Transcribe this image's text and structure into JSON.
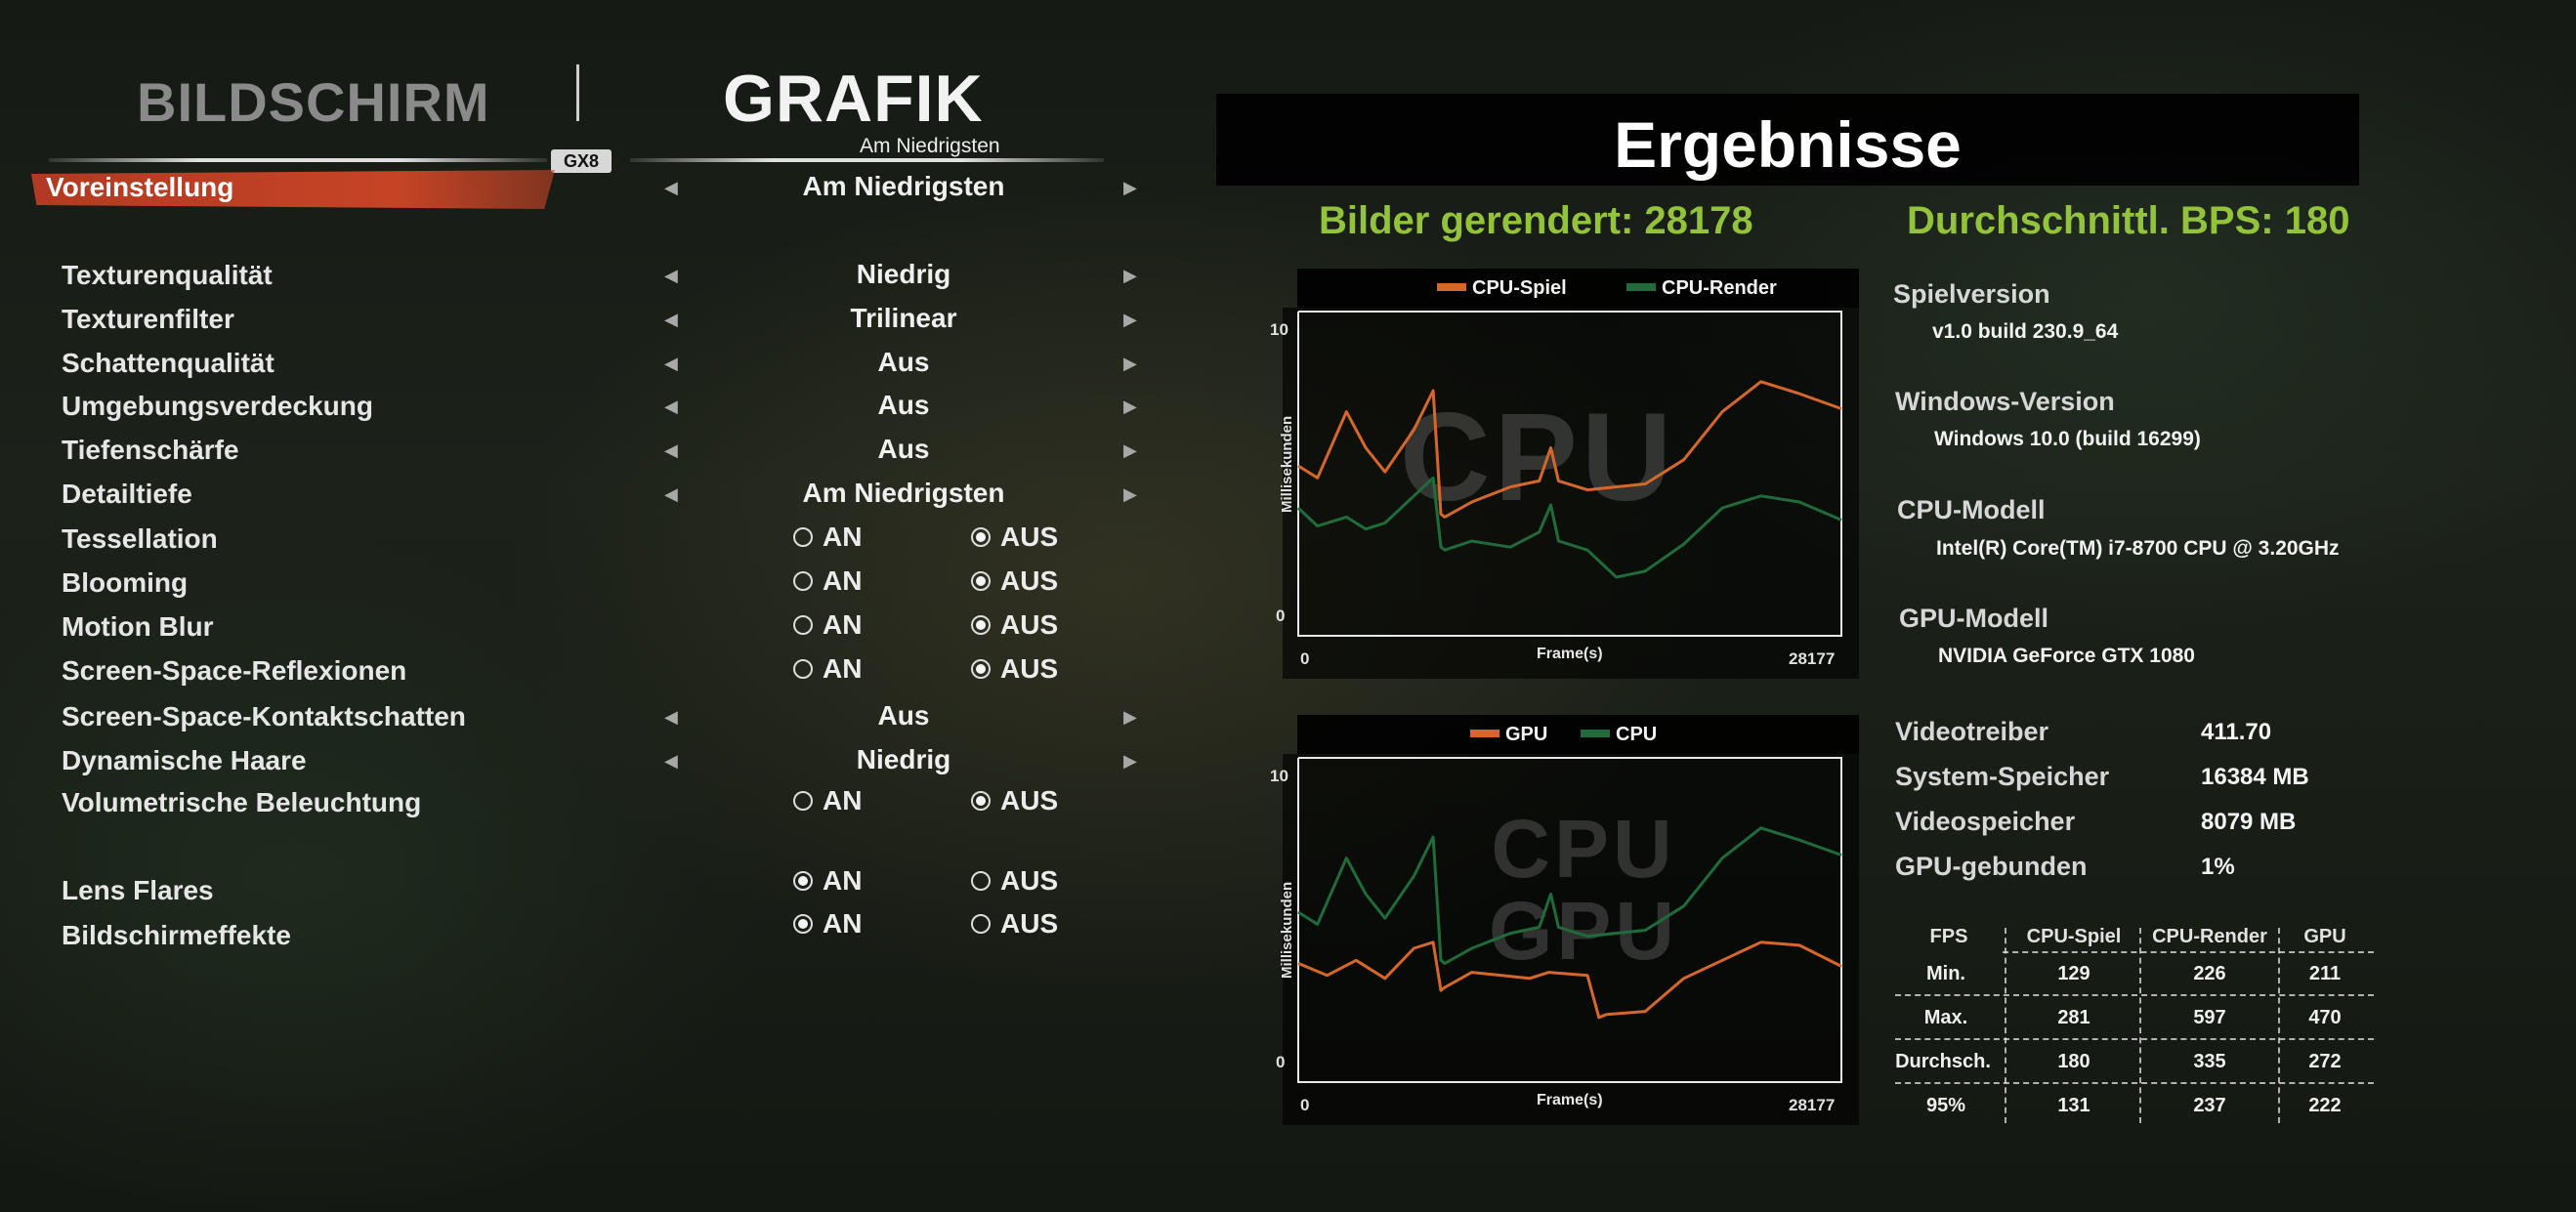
{
  "tabs": {
    "inactive": "BILDSCHIRM",
    "active": "GRAFIK",
    "switch_key": "GX8",
    "active_subtitle": "Am Niedrigsten"
  },
  "preset": {
    "label": "Voreinstellung",
    "value": "Am Niedrigsten"
  },
  "settings": [
    {
      "label": "Texturenqualität",
      "value": "Niedrig"
    },
    {
      "label": "Texturenfilter",
      "value": "Trilinear"
    },
    {
      "label": "Schattenqualität",
      "value": "Aus"
    },
    {
      "label": "Umgebungsverdeckung",
      "value": "Aus"
    },
    {
      "label": "Tiefenschärfe",
      "value": "Aus"
    },
    {
      "label": "Detailtiefe",
      "value": "Am Niedrigsten"
    },
    {
      "label": "Tessellation",
      "on": "AN",
      "off": "AUS",
      "selected": "AUS"
    },
    {
      "label": "Blooming",
      "on": "AN",
      "off": "AUS",
      "selected": "AUS"
    },
    {
      "label": "Motion Blur",
      "on": "AN",
      "off": "AUS",
      "selected": "AUS"
    },
    {
      "label": "Screen-Space-Reflexionen",
      "on": "AN",
      "off": "AUS",
      "selected": "AUS"
    },
    {
      "label": "Screen-Space-Kontaktschatten",
      "value": "Aus"
    },
    {
      "label": "Dynamische Haare",
      "value": "Niedrig"
    },
    {
      "label": "Volumetrische Beleuchtung",
      "on": "AN",
      "off": "AUS",
      "selected": "AUS"
    },
    {
      "label": "Lens Flares",
      "on": "AN",
      "off": "AUS",
      "selected": "AN"
    },
    {
      "label": "Bildschirmeffekte",
      "on": "AN",
      "off": "AUS",
      "selected": "AN"
    }
  ],
  "results": {
    "title": "Ergebnisse",
    "frames_rendered": "Bilder gerendert: 28178",
    "avg_fps": "Durchschnittl. BPS: 180"
  },
  "colors": {
    "orange": "#d6672a",
    "green": "#1f6b3a",
    "accent_green": "#93c33a",
    "preset_red": "#c64426"
  },
  "chart_data": [
    {
      "type": "line",
      "watermark": "CPU",
      "ylabel": "Millisekunden",
      "xlabel": "Frame(s)",
      "x_range": [
        0,
        28177
      ],
      "x_ticks": [
        "0",
        "28177"
      ],
      "y_ticks": [
        "10",
        "0"
      ],
      "ylim": [
        0,
        10
      ],
      "series": [
        {
          "name": "CPU-Spiel",
          "color": "#d6672a",
          "x": [
            0,
            1000,
            2500,
            3500,
            4500,
            6000,
            7000,
            7400,
            7600,
            9000,
            11000,
            12500,
            13100,
            13500,
            15000,
            18000,
            20000,
            22000,
            24000,
            26000,
            28177
          ],
          "values": [
            5.0,
            4.6,
            6.8,
            5.6,
            4.8,
            6.2,
            7.5,
            3.4,
            3.3,
            3.8,
            4.3,
            4.5,
            5.6,
            4.5,
            4.2,
            4.4,
            5.2,
            6.8,
            7.8,
            7.4,
            6.9
          ]
        },
        {
          "name": "CPU-Render",
          "color": "#1f6b3a",
          "x": [
            0,
            1000,
            2500,
            3500,
            4500,
            6000,
            7000,
            7400,
            7600,
            9000,
            11000,
            12500,
            13100,
            13500,
            15000,
            16500,
            18000,
            20000,
            22000,
            24000,
            26000,
            28177
          ],
          "values": [
            3.6,
            3.0,
            3.3,
            2.9,
            3.1,
            4.0,
            4.6,
            2.3,
            2.2,
            2.5,
            2.3,
            2.8,
            3.7,
            2.5,
            2.2,
            1.3,
            1.5,
            2.4,
            3.6,
            4.0,
            3.8,
            3.2
          ]
        }
      ]
    },
    {
      "type": "line",
      "watermark": "CPU GPU",
      "ylabel": "Millisekunden",
      "xlabel": "Frame(s)",
      "x_range": [
        0,
        28177
      ],
      "x_ticks": [
        "0",
        "28177"
      ],
      "y_ticks": [
        "10",
        "0"
      ],
      "ylim": [
        0,
        10
      ],
      "series": [
        {
          "name": "GPU",
          "color": "#d6672a",
          "x": [
            0,
            1500,
            3000,
            4500,
            6000,
            7000,
            7400,
            7600,
            9000,
            12000,
            13000,
            15000,
            15600,
            16000,
            18000,
            20000,
            22000,
            24000,
            26000,
            28177
          ],
          "values": [
            3.3,
            2.9,
            3.4,
            2.8,
            3.8,
            4.0,
            2.4,
            2.5,
            3.0,
            2.8,
            3.0,
            2.9,
            1.5,
            1.6,
            1.7,
            2.8,
            3.4,
            4.0,
            3.9,
            3.2
          ]
        },
        {
          "name": "CPU",
          "color": "#1f6b3a",
          "x": [
            0,
            1000,
            2500,
            3500,
            4500,
            6000,
            7000,
            7400,
            7600,
            9000,
            11000,
            12500,
            13100,
            13500,
            15000,
            18000,
            20000,
            22000,
            24000,
            26000,
            28177
          ],
          "values": [
            5.0,
            4.6,
            6.8,
            5.6,
            4.8,
            6.2,
            7.5,
            3.4,
            3.3,
            3.8,
            4.3,
            4.5,
            5.6,
            4.5,
            4.2,
            4.4,
            5.2,
            6.8,
            7.8,
            7.4,
            6.9
          ]
        }
      ]
    }
  ],
  "info": {
    "game_version_label": "Spielversion",
    "game_version": "v1.0 build 230.9_64",
    "windows_label": "Windows-Version",
    "windows": "Windows 10.0 (build 16299)",
    "cpu_label": "CPU-Modell",
    "cpu": "Intel(R) Core(TM) i7-8700 CPU @ 3.20GHz",
    "gpu_label": "GPU-Modell",
    "gpu": "NVIDIA GeForce GTX 1080",
    "kv": [
      {
        "k": "Videotreiber",
        "v": "411.70"
      },
      {
        "k": "System-Speicher",
        "v": "16384 MB"
      },
      {
        "k": "Videospeicher",
        "v": "8079 MB"
      },
      {
        "k": "GPU-gebunden",
        "v": "1%"
      }
    ]
  },
  "fps_table": {
    "headers": [
      "FPS",
      "CPU-Spiel",
      "CPU-Render",
      "GPU"
    ],
    "rows": [
      [
        "Min.",
        "129",
        "226",
        "211"
      ],
      [
        "Max.",
        "281",
        "597",
        "470"
      ],
      [
        "Durchsch.",
        "180",
        "335",
        "272"
      ],
      [
        "95%",
        "131",
        "237",
        "222"
      ]
    ]
  }
}
